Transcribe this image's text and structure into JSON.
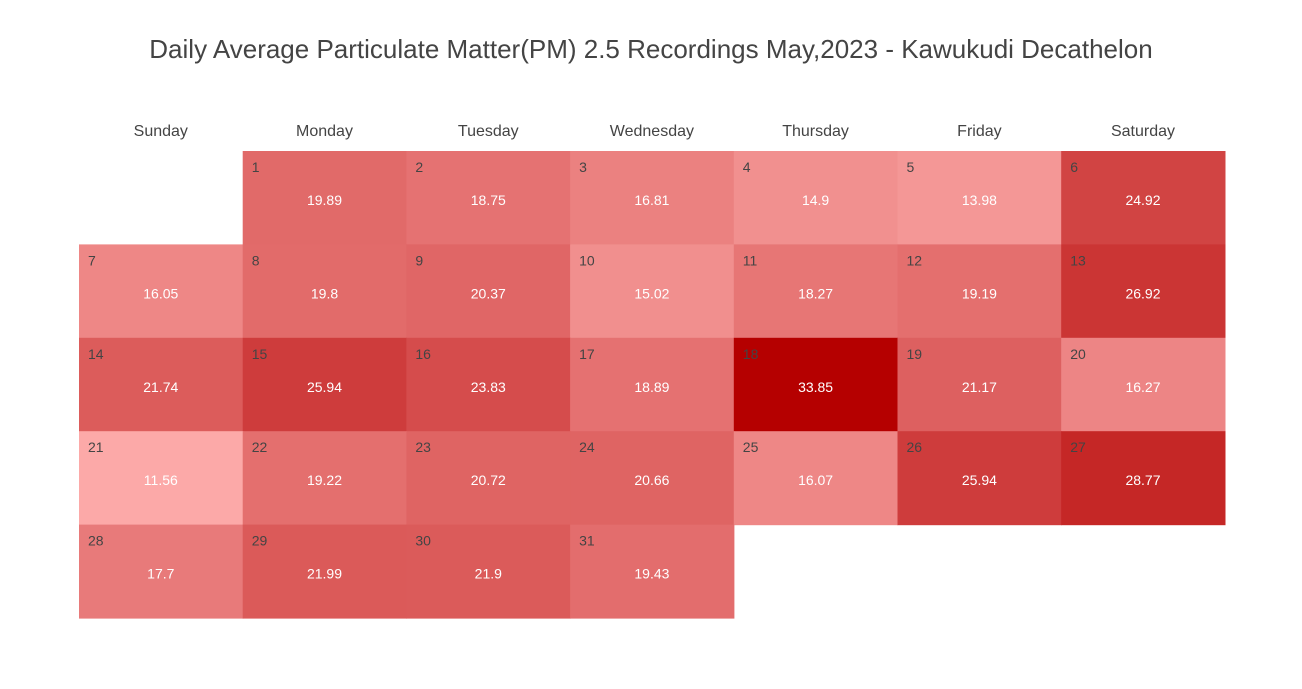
{
  "chart_data": {
    "type": "heatmap",
    "title": "Daily Average Particulate Matter(PM) 2.5 Recordings May,2023 - Kawukudi Decathelon",
    "weekdays": [
      "Sunday",
      "Monday",
      "Tuesday",
      "Wednesday",
      "Thursday",
      "Friday",
      "Saturday"
    ],
    "first_weekday_index": 1,
    "days": [
      {
        "day": "1",
        "value": 19.89
      },
      {
        "day": "2",
        "value": 18.75
      },
      {
        "day": "3",
        "value": 16.81
      },
      {
        "day": "4",
        "value": 14.9
      },
      {
        "day": "5",
        "value": 13.98
      },
      {
        "day": "6",
        "value": 24.92
      },
      {
        "day": "7",
        "value": 16.05
      },
      {
        "day": "8",
        "value": 19.8
      },
      {
        "day": "9",
        "value": 20.37
      },
      {
        "day": "10",
        "value": 15.02
      },
      {
        "day": "11",
        "value": 18.27
      },
      {
        "day": "12",
        "value": 19.19
      },
      {
        "day": "13",
        "value": 26.92
      },
      {
        "day": "14",
        "value": 21.74
      },
      {
        "day": "15",
        "value": 25.94
      },
      {
        "day": "16",
        "value": 23.83
      },
      {
        "day": "17",
        "value": 18.89
      },
      {
        "day": "18",
        "value": 33.85
      },
      {
        "day": "19",
        "value": 21.17
      },
      {
        "day": "20",
        "value": 16.27
      },
      {
        "day": "21",
        "value": 11.56
      },
      {
        "day": "22",
        "value": 19.22
      },
      {
        "day": "23",
        "value": 20.72
      },
      {
        "day": "24",
        "value": 20.66
      },
      {
        "day": "25",
        "value": 16.07
      },
      {
        "day": "26",
        "value": 25.94
      },
      {
        "day": "27",
        "value": 28.77
      },
      {
        "day": "28",
        "value": 17.7
      },
      {
        "day": "29",
        "value": 21.99
      },
      {
        "day": "30",
        "value": 21.9
      },
      {
        "day": "31",
        "value": 19.43
      }
    ],
    "color_scale": {
      "low": "#fca9a8",
      "high": "#b50000"
    }
  }
}
